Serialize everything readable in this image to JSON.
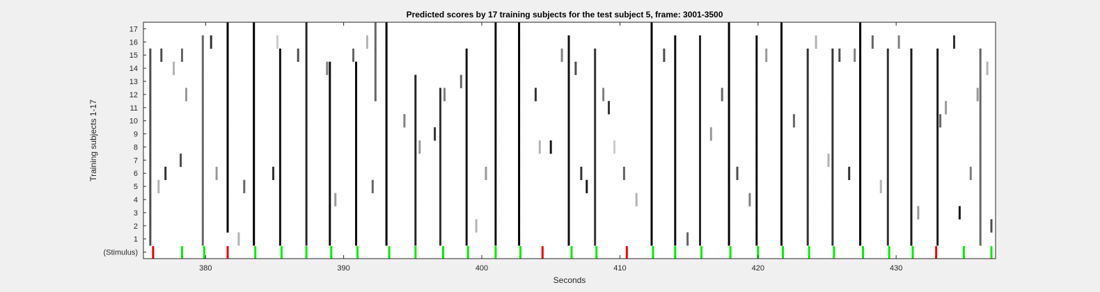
{
  "chart_data": {
    "type": "heatmap",
    "title": "Predicted scores by 17 training subjects for the test subject 5, frame: 3001-3500",
    "xlabel": "Seconds",
    "ylabel": "Training subjects 1-17",
    "xlim": [
      375.5,
      437.2
    ],
    "x_ticks": [
      380,
      390,
      400,
      410,
      420,
      430
    ],
    "rows": [
      "(Stimulus)",
      "1",
      "2",
      "3",
      "4",
      "5",
      "6",
      "7",
      "8",
      "9",
      "10",
      "11",
      "12",
      "13",
      "14",
      "15",
      "16",
      "17"
    ],
    "colormap": "grayscale (white = 0, black = 1)",
    "stimulus_colors": {
      "correct": "#00ee00",
      "incorrect": "#ee0000"
    },
    "stimulus": [
      {
        "x": 376.2,
        "type": "incorrect"
      },
      {
        "x": 378.3,
        "type": "correct"
      },
      {
        "x": 379.9,
        "type": "correct"
      },
      {
        "x": 381.6,
        "type": "incorrect"
      },
      {
        "x": 383.6,
        "type": "correct"
      },
      {
        "x": 385.5,
        "type": "correct"
      },
      {
        "x": 387.3,
        "type": "correct"
      },
      {
        "x": 389.1,
        "type": "correct"
      },
      {
        "x": 391.0,
        "type": "correct"
      },
      {
        "x": 393.3,
        "type": "correct"
      },
      {
        "x": 395.2,
        "type": "correct"
      },
      {
        "x": 397.2,
        "type": "correct"
      },
      {
        "x": 399.0,
        "type": "correct"
      },
      {
        "x": 401.0,
        "type": "correct"
      },
      {
        "x": 402.8,
        "type": "correct"
      },
      {
        "x": 404.4,
        "type": "incorrect"
      },
      {
        "x": 406.5,
        "type": "correct"
      },
      {
        "x": 408.3,
        "type": "correct"
      },
      {
        "x": 410.5,
        "type": "incorrect"
      },
      {
        "x": 412.4,
        "type": "correct"
      },
      {
        "x": 414.0,
        "type": "correct"
      },
      {
        "x": 415.9,
        "type": "correct"
      },
      {
        "x": 418.0,
        "type": "correct"
      },
      {
        "x": 420.0,
        "type": "correct"
      },
      {
        "x": 421.8,
        "type": "correct"
      },
      {
        "x": 423.7,
        "type": "correct"
      },
      {
        "x": 425.5,
        "type": "correct"
      },
      {
        "x": 427.6,
        "type": "correct"
      },
      {
        "x": 429.5,
        "type": "correct"
      },
      {
        "x": 431.2,
        "type": "correct"
      },
      {
        "x": 432.9,
        "type": "incorrect"
      },
      {
        "x": 434.9,
        "type": "correct"
      },
      {
        "x": 436.9,
        "type": "correct"
      }
    ],
    "full_columns": [
      {
        "x": 381.6,
        "v": 1.0,
        "rows": [
          2,
          17
        ]
      },
      {
        "x": 383.5,
        "v": 1.0,
        "rows": [
          1,
          17
        ]
      },
      {
        "x": 393.1,
        "v": 1.0,
        "rows": [
          1,
          17
        ]
      },
      {
        "x": 401.0,
        "v": 0.95,
        "rows": [
          1,
          17
        ]
      },
      {
        "x": 402.7,
        "v": 1.0,
        "rows": [
          1,
          17
        ]
      },
      {
        "x": 412.3,
        "v": 1.0,
        "rows": [
          1,
          17
        ]
      },
      {
        "x": 417.9,
        "v": 1.0,
        "rows": [
          1,
          17
        ]
      },
      {
        "x": 421.7,
        "v": 1.0,
        "rows": [
          1,
          17
        ]
      },
      {
        "x": 427.4,
        "v": 1.0,
        "rows": [
          1,
          17
        ]
      },
      {
        "x": 385.4,
        "v": 0.92,
        "rows": [
          1,
          15
        ]
      },
      {
        "x": 389.0,
        "v": 0.95,
        "rows": [
          1,
          14
        ]
      },
      {
        "x": 390.9,
        "v": 0.95,
        "rows": [
          1,
          14
        ]
      },
      {
        "x": 398.9,
        "v": 0.92,
        "rows": [
          1,
          15
        ]
      },
      {
        "x": 406.3,
        "v": 0.95,
        "rows": [
          1,
          16
        ]
      },
      {
        "x": 414.0,
        "v": 0.95,
        "rows": [
          1,
          16
        ]
      },
      {
        "x": 419.9,
        "v": 0.95,
        "rows": [
          1,
          16
        ]
      },
      {
        "x": 431.1,
        "v": 0.9,
        "rows": [
          1,
          15
        ]
      },
      {
        "x": 387.3,
        "v": 0.85,
        "rows": [
          1,
          17
        ]
      },
      {
        "x": 395.2,
        "v": 0.85,
        "rows": [
          1,
          13
        ]
      },
      {
        "x": 397.0,
        "v": 0.8,
        "rows": [
          1,
          12
        ]
      },
      {
        "x": 408.2,
        "v": 0.8,
        "rows": [
          1,
          15
        ]
      },
      {
        "x": 415.8,
        "v": 0.85,
        "rows": [
          1,
          16
        ]
      },
      {
        "x": 423.6,
        "v": 0.8,
        "rows": [
          1,
          15
        ]
      },
      {
        "x": 425.4,
        "v": 0.8,
        "rows": [
          1,
          15
        ]
      },
      {
        "x": 429.4,
        "v": 0.8,
        "rows": [
          1,
          15
        ]
      },
      {
        "x": 376.0,
        "v": 0.7,
        "rows": [
          1,
          15
        ]
      },
      {
        "x": 379.8,
        "v": 0.6,
        "rows": [
          1,
          16
        ]
      },
      {
        "x": 392.3,
        "v": 0.6,
        "rows": [
          12,
          17
        ]
      },
      {
        "x": 433.0,
        "v": 0.9,
        "rows": [
          1,
          15
        ]
      },
      {
        "x": 436.1,
        "v": 0.6,
        "rows": [
          1,
          15
        ]
      }
    ],
    "scattered_cells": [
      {
        "x": 377.7,
        "row": 14,
        "v": 0.3
      },
      {
        "x": 378.3,
        "row": 15,
        "v": 0.6
      },
      {
        "x": 377.1,
        "row": 6,
        "v": 0.8
      },
      {
        "x": 378.2,
        "row": 7,
        "v": 0.7
      },
      {
        "x": 376.6,
        "row": 5,
        "v": 0.3
      },
      {
        "x": 378.6,
        "row": 12,
        "v": 0.4
      },
      {
        "x": 380.4,
        "row": 16,
        "v": 0.8
      },
      {
        "x": 380.8,
        "row": 6,
        "v": 0.4
      },
      {
        "x": 376.8,
        "row": 15,
        "v": 0.7
      },
      {
        "x": 382.4,
        "row": 1,
        "v": 0.3
      },
      {
        "x": 382.8,
        "row": 5,
        "v": 0.6
      },
      {
        "x": 384.9,
        "row": 6,
        "v": 0.8
      },
      {
        "x": 385.2,
        "row": 16,
        "v": 0.2
      },
      {
        "x": 386.7,
        "row": 15,
        "v": 0.7
      },
      {
        "x": 388.8,
        "row": 14,
        "v": 0.5
      },
      {
        "x": 389.4,
        "row": 4,
        "v": 0.4
      },
      {
        "x": 390.7,
        "row": 15,
        "v": 0.6
      },
      {
        "x": 391.7,
        "row": 16,
        "v": 0.3
      },
      {
        "x": 392.1,
        "row": 5,
        "v": 0.6
      },
      {
        "x": 394.4,
        "row": 10,
        "v": 0.5
      },
      {
        "x": 395.5,
        "row": 8,
        "v": 0.4
      },
      {
        "x": 396.6,
        "row": 9,
        "v": 0.8
      },
      {
        "x": 397.3,
        "row": 12,
        "v": 0.5
      },
      {
        "x": 398.5,
        "row": 13,
        "v": 0.6
      },
      {
        "x": 399.6,
        "row": 2,
        "v": 0.3
      },
      {
        "x": 400.3,
        "row": 6,
        "v": 0.4
      },
      {
        "x": 403.9,
        "row": 12,
        "v": 0.8
      },
      {
        "x": 404.2,
        "row": 8,
        "v": 0.3
      },
      {
        "x": 405.0,
        "row": 8,
        "v": 0.9
      },
      {
        "x": 405.8,
        "row": 15,
        "v": 0.5
      },
      {
        "x": 406.8,
        "row": 14,
        "v": 0.7
      },
      {
        "x": 407.2,
        "row": 6,
        "v": 0.8
      },
      {
        "x": 407.6,
        "row": 5,
        "v": 0.9
      },
      {
        "x": 408.8,
        "row": 12,
        "v": 0.5
      },
      {
        "x": 409.2,
        "row": 11,
        "v": 0.8
      },
      {
        "x": 409.6,
        "row": 8,
        "v": 0.2
      },
      {
        "x": 410.3,
        "row": 6,
        "v": 0.6
      },
      {
        "x": 411.2,
        "row": 4,
        "v": 0.3
      },
      {
        "x": 413.2,
        "row": 15,
        "v": 0.7
      },
      {
        "x": 414.9,
        "row": 1,
        "v": 0.6
      },
      {
        "x": 416.6,
        "row": 9,
        "v": 0.4
      },
      {
        "x": 417.4,
        "row": 12,
        "v": 0.6
      },
      {
        "x": 418.5,
        "row": 6,
        "v": 0.7
      },
      {
        "x": 419.4,
        "row": 4,
        "v": 0.5
      },
      {
        "x": 420.6,
        "row": 15,
        "v": 0.4
      },
      {
        "x": 422.6,
        "row": 10,
        "v": 0.6
      },
      {
        "x": 424.2,
        "row": 16,
        "v": 0.3
      },
      {
        "x": 425.1,
        "row": 7,
        "v": 0.3
      },
      {
        "x": 425.9,
        "row": 15,
        "v": 0.7
      },
      {
        "x": 426.6,
        "row": 6,
        "v": 0.8
      },
      {
        "x": 427.0,
        "row": 15,
        "v": 0.5
      },
      {
        "x": 428.3,
        "row": 16,
        "v": 0.6
      },
      {
        "x": 428.9,
        "row": 5,
        "v": 0.3
      },
      {
        "x": 430.2,
        "row": 16,
        "v": 0.5
      },
      {
        "x": 431.6,
        "row": 3,
        "v": 0.4
      },
      {
        "x": 433.2,
        "row": 10,
        "v": 0.6
      },
      {
        "x": 433.6,
        "row": 11,
        "v": 0.4
      },
      {
        "x": 434.2,
        "row": 16,
        "v": 0.8
      },
      {
        "x": 434.6,
        "row": 3,
        "v": 0.9
      },
      {
        "x": 435.4,
        "row": 6,
        "v": 0.5
      },
      {
        "x": 435.9,
        "row": 12,
        "v": 0.4
      },
      {
        "x": 436.6,
        "row": 14,
        "v": 0.3
      },
      {
        "x": 436.9,
        "row": 2,
        "v": 0.7
      }
    ]
  }
}
